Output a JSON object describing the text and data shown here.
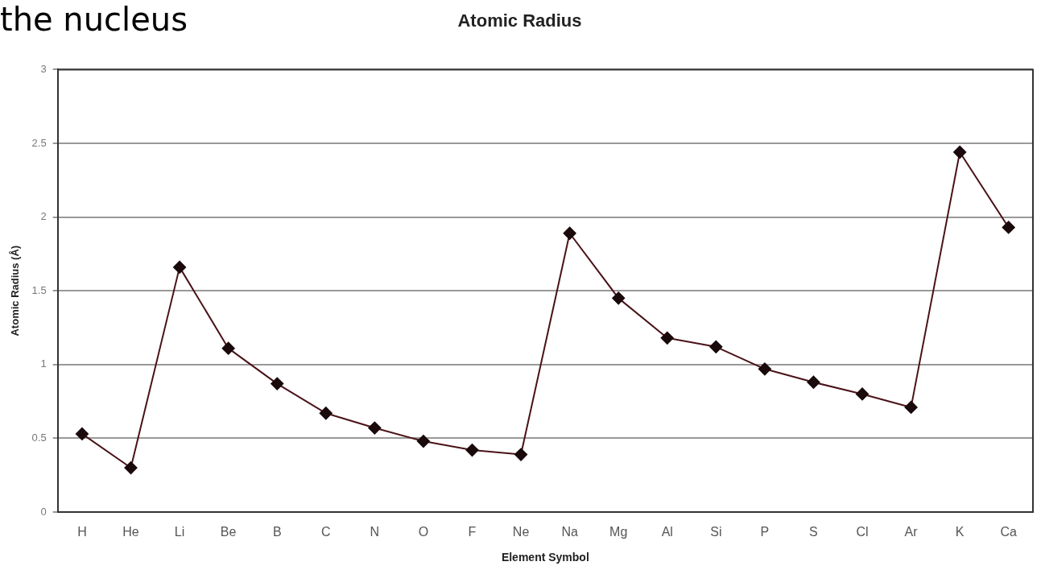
{
  "chart_data": {
    "type": "line",
    "title": "Atomic Radius",
    "xlabel": "Element Symbol",
    "ylabel": "Atomic Radius (Å)",
    "annotations": [
      "the nucleus"
    ],
    "categories": [
      "H",
      "He",
      "Li",
      "Be",
      "B",
      "C",
      "N",
      "O",
      "F",
      "Ne",
      "Na",
      "Mg",
      "Al",
      "Si",
      "P",
      "S",
      "Cl",
      "Ar",
      "K",
      "Ca"
    ],
    "series": [
      {
        "color": "#4a1218",
        "values": [
          0.53,
          0.3,
          1.66,
          1.11,
          0.87,
          0.67,
          0.57,
          0.48,
          0.42,
          0.39,
          1.89,
          1.45,
          1.18,
          1.12,
          0.97,
          0.88,
          0.8,
          0.71,
          2.44,
          1.93
        ]
      }
    ],
    "ylim": [
      0,
      3
    ],
    "yticks": [
      0,
      0.5,
      1,
      1.5,
      2,
      2.5,
      3
    ],
    "grid": "y",
    "legend": false,
    "marker": "diamond",
    "line_style": "solid"
  }
}
